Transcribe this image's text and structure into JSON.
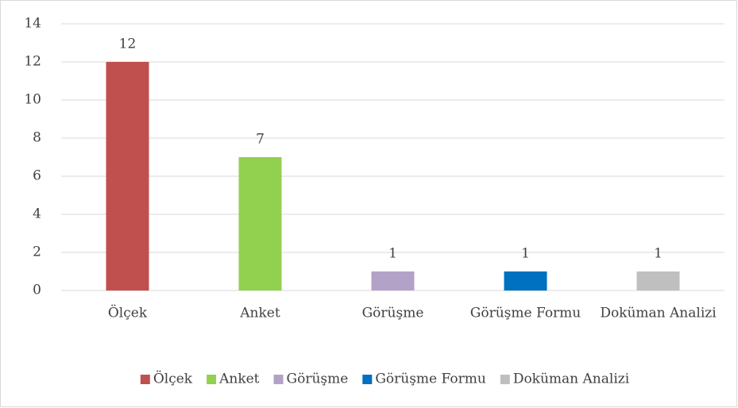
{
  "chart_data": {
    "type": "bar",
    "categories": [
      "Ölçek",
      "Anket",
      "Görüşme",
      "Görüşme Formu",
      "Doküman Analizi"
    ],
    "values": [
      12,
      7,
      1,
      1,
      1
    ],
    "colors": [
      "#c0504d",
      "#92d050",
      "#b3a2c7",
      "#0070c0",
      "#bfbfbf"
    ],
    "ylim": [
      0,
      14
    ],
    "yticks": [
      0,
      2,
      4,
      6,
      8,
      10,
      12,
      14
    ],
    "grid": true,
    "legend": "bottom"
  }
}
